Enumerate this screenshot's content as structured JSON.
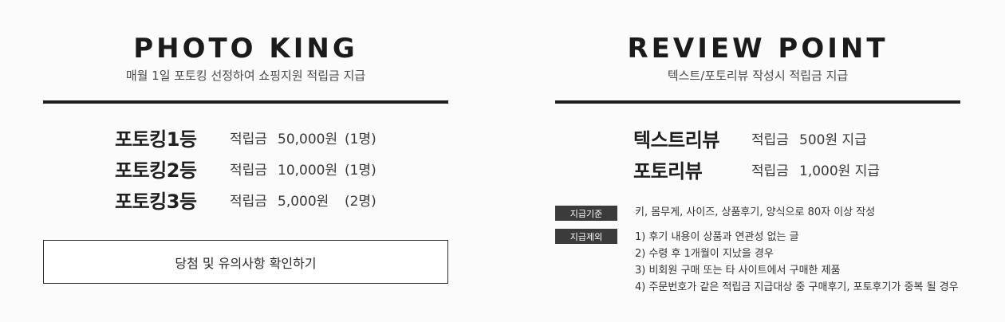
{
  "photo_king": {
    "title": "PHOTO KING",
    "subtitle": "매월 1일 포토킹 선정하여 쇼핑지원 적립금 지급",
    "prizes": [
      {
        "rank": "포토킹1등",
        "label": "적립금",
        "amount": "50,000원",
        "count": "(1명)"
      },
      {
        "rank": "포토킹2등",
        "label": "적립금",
        "amount": "10,000원",
        "count": "(1명)"
      },
      {
        "rank": "포토킹3등",
        "label": "적립금",
        "amount": "5,000원",
        "count": "(2명)"
      }
    ],
    "button_label": "당첨 및 유의사항 확인하기"
  },
  "review_point": {
    "title": "REVIEW POINT",
    "subtitle": "텍스트/포토리뷰 작성시 적립금 지급",
    "rewards": [
      {
        "type": "텍스트리뷰",
        "label": "적립금",
        "amount": "500원 지급"
      },
      {
        "type": "포토리뷰",
        "label": "적립금",
        "amount": "1,000원 지급"
      }
    ],
    "criteria_tag": "지급기준",
    "criteria_text": "키, 몸무게, 사이즈, 상품후기, 양식으로 80자 이상 작성",
    "exclusion_tag": "지급제외",
    "exclusions": [
      "1) 후기 내용이 상품과 연관성 없는 글",
      "2) 수령 후 1개월이 지났을 경우",
      "3) 비회원 구매 또는 타 사이트에서 구매한 제품",
      "4) 주문번호가 같은 적립금 지급대상 중 구매후기, 포토후기가 중복 될 경우"
    ]
  }
}
